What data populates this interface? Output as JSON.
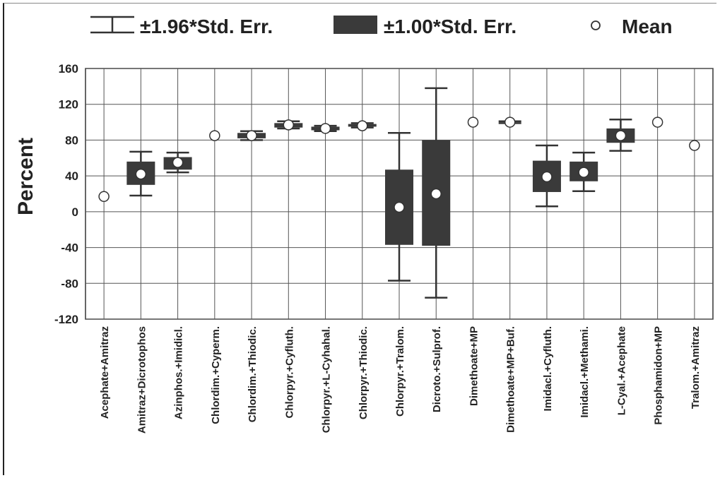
{
  "chart_data": {
    "type": "box",
    "ylabel": "Percent",
    "xlabel": "",
    "ylim": [
      -120,
      160
    ],
    "yticks": [
      160,
      120,
      80,
      40,
      0,
      -40,
      -80,
      -120
    ],
    "grid": true,
    "legend_position": "top",
    "legend": [
      {
        "name": "±1.96*Std. Err.",
        "symbol": "whisker"
      },
      {
        "name": "±1.00*Std. Err.",
        "symbol": "box"
      },
      {
        "name": "Mean",
        "symbol": "circle"
      }
    ],
    "categories": [
      "Acephate+Amitraz",
      "Amitraz+Dicrotophos",
      "Azinphos.+Imidicl.",
      "Chlordim.+Cyperm.",
      "Chlordim.+Thiodic.",
      "Chlorpyr.+Cyfluth.",
      "Chlorpyr.+L-Cyhahal.",
      "Chlorpyr.+Thiodic.",
      "Chlorpyr.+Tralom.",
      "Dicroto.+Sulprof.",
      "Dimethoate+MP",
      "Dimethoate+MP+Buf.",
      "Imidacl.+Cyfluth.",
      "Imidacl.+Methami.",
      "L-Cyal.+Acephate",
      "Phosphamidon+MP",
      "Tralom.+Amitraz"
    ],
    "series": [
      {
        "mean": [
          17,
          42,
          55,
          85,
          85,
          97,
          93,
          96,
          5,
          20,
          100,
          100,
          39,
          44,
          85,
          100,
          74
        ],
        "box_low": [
          17,
          30,
          47,
          85,
          82,
          94,
          91,
          95,
          -37,
          -38,
          100,
          100,
          22,
          34,
          77,
          100,
          74
        ],
        "box_high": [
          17,
          56,
          61,
          85,
          88,
          99,
          95,
          98,
          47,
          80,
          100,
          100,
          57,
          56,
          93,
          100,
          74
        ],
        "whisker_low": [
          17,
          18,
          44,
          85,
          80,
          93,
          90,
          94,
          -77,
          -96,
          100,
          99,
          6,
          23,
          68,
          100,
          74
        ],
        "whisker_high": [
          17,
          67,
          66,
          85,
          90,
          101,
          96,
          99,
          88,
          138,
          100,
          101,
          74,
          66,
          103,
          100,
          74
        ]
      }
    ]
  }
}
